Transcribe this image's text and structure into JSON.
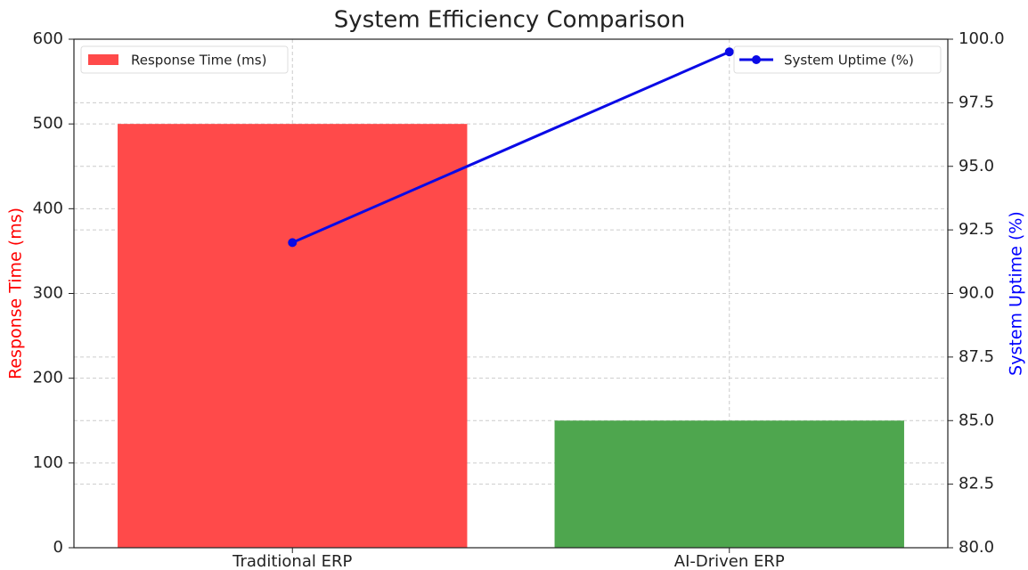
{
  "chart_data": {
    "type": "bar",
    "title": "System Efficiency Comparison",
    "categories": [
      "Traditional ERP",
      "AI-Driven ERP"
    ],
    "ylabel": "Response Time (ms)",
    "y2label": "System Uptime (%)",
    "ylim": [
      0,
      600
    ],
    "yticks": [
      0,
      100,
      200,
      300,
      400,
      500,
      600
    ],
    "y2lim": [
      80,
      100
    ],
    "y2ticks": [
      {
        "value": 80,
        "label": "80.0"
      },
      82.5,
      {
        "value": 85,
        "label": "85.0"
      },
      87.5,
      {
        "value": 90,
        "label": "90.0"
      },
      92.5,
      {
        "value": 95,
        "label": "95.0"
      },
      97.5,
      {
        "value": 100,
        "label": "100.0"
      }
    ],
    "grid": true,
    "ylabel_color": "#ff0000",
    "y2label_color": "#0000ff",
    "series": [
      {
        "name": "Response Time (ms)",
        "type": "bar",
        "colors": [
          "#ff4a4a",
          "#4ea64e"
        ],
        "values": [
          500,
          150
        ],
        "legend": "upper left"
      },
      {
        "name": "System Uptime (%)",
        "type": "line",
        "color": "#0a0ae6",
        "axis": "y2",
        "values": [
          92,
          99.5
        ],
        "legend": "upper right"
      }
    ]
  }
}
